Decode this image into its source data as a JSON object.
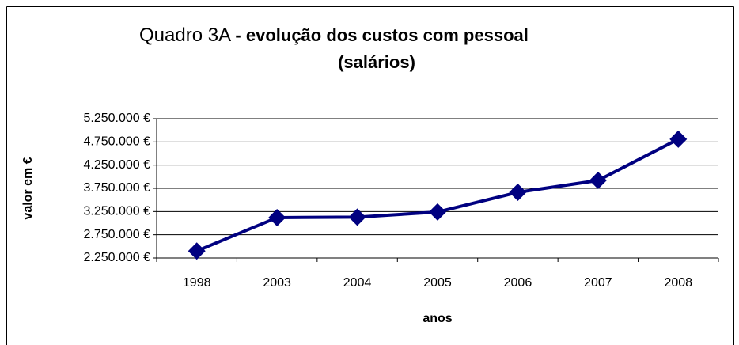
{
  "chart_data": {
    "type": "line",
    "title": [
      "Quadro 3A",
      "- evolução dos custos com pessoal",
      "(salários)"
    ],
    "x_label": "anos",
    "y_label": "valor em €",
    "categories": [
      "1998",
      "2003",
      "2004",
      "2005",
      "2006",
      "2007",
      "2008"
    ],
    "series": [
      {
        "name": "custos com pessoal",
        "color": "#000080",
        "values": [
          2400000,
          3120000,
          3130000,
          3240000,
          3665000,
          3920000,
          4810000
        ]
      }
    ],
    "ylim": [
      2250000,
      5250000
    ],
    "yticks": [
      {
        "value": 2250000,
        "label": "2.250.000 €"
      },
      {
        "value": 2750000,
        "label": "2.750.000 €"
      },
      {
        "value": 3250000,
        "label": "3.250.000 €"
      },
      {
        "value": 3750000,
        "label": "3.750.000 €"
      },
      {
        "value": 4250000,
        "label": "4.250.000 €"
      },
      {
        "value": 4750000,
        "label": "4.750.000 €"
      },
      {
        "value": 5250000,
        "label": "5.250.000 €"
      }
    ],
    "grid": true
  }
}
